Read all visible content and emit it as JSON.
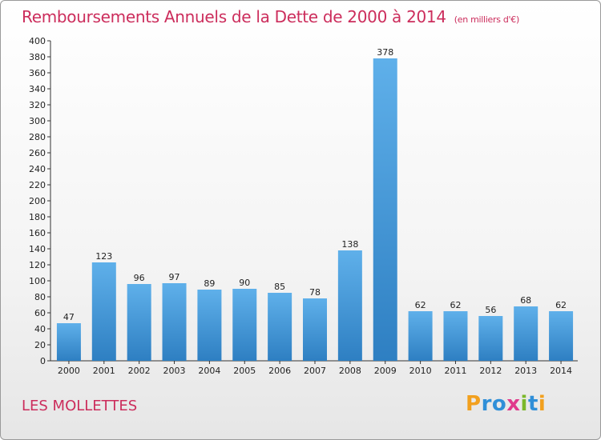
{
  "title": "Remboursements Annuels de la Dette de 2000 à 2014",
  "subtitle": "(en milliers d'€)",
  "commune": "LES MOLLETTES",
  "logo": {
    "letters": [
      "P",
      "r",
      "o",
      "x",
      "i",
      "t",
      "i"
    ],
    "colors": [
      "#f2a01e",
      "#2f8fd8",
      "#2f8fd8",
      "#e03a8c",
      "#7bb82a",
      "#2f8fd8",
      "#f2a01e"
    ]
  },
  "colors": {
    "title": "#cc2d5c",
    "bar_light": "#5fb0ea",
    "bar_dark": "#2e7fc2"
  },
  "chart_data": {
    "type": "bar",
    "title": "Remboursements Annuels de la Dette de 2000 à 2014",
    "categories": [
      "2000",
      "2001",
      "2002",
      "2003",
      "2004",
      "2005",
      "2006",
      "2007",
      "2008",
      "2009",
      "2010",
      "2011",
      "2012",
      "2013",
      "2014"
    ],
    "values": [
      47,
      123,
      96,
      97,
      89,
      90,
      85,
      78,
      138,
      378,
      62,
      62,
      56,
      68,
      62
    ],
    "ylim": [
      0,
      400
    ],
    "yticks": [
      0,
      20,
      40,
      60,
      80,
      100,
      120,
      140,
      160,
      180,
      200,
      220,
      240,
      260,
      280,
      300,
      320,
      340,
      360,
      380,
      400
    ],
    "grid": false,
    "legend": "none"
  }
}
